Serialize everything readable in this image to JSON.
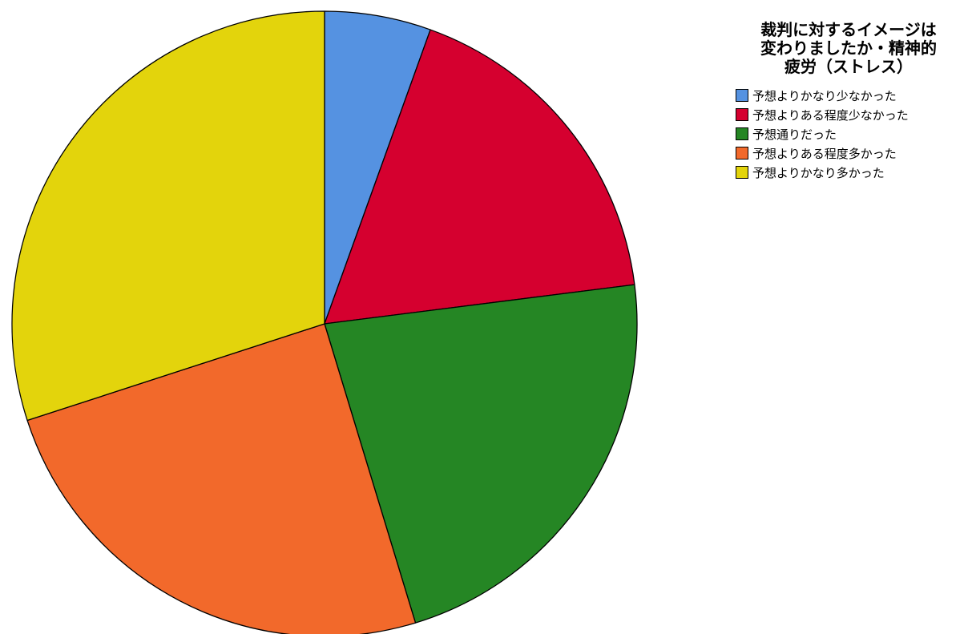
{
  "chart_data": {
    "type": "pie",
    "title": "裁判に対するイメージは変わりましたか・精神的疲労（ストレス）",
    "title_lines": [
      "裁判に対するイメージは",
      "変わりましたか・精神的",
      "疲労（ストレス）"
    ],
    "legend_position": "right",
    "start_angle_deg": 0,
    "direction": "clockwise",
    "slices": [
      {
        "label": "予想よりかなり少なかった",
        "value": 5.5,
        "color": "#5592e1"
      },
      {
        "label": "予想よりある程度少なかった",
        "value": 17.5,
        "color": "#d5002f"
      },
      {
        "label": "予想通りだった",
        "value": 22.3,
        "color": "#258624"
      },
      {
        "label": "予想よりある程度多かった",
        "value": 24.7,
        "color": "#f2692b"
      },
      {
        "label": "予想よりかなり多かった",
        "value": 30.0,
        "color": "#e3d40c"
      }
    ]
  }
}
